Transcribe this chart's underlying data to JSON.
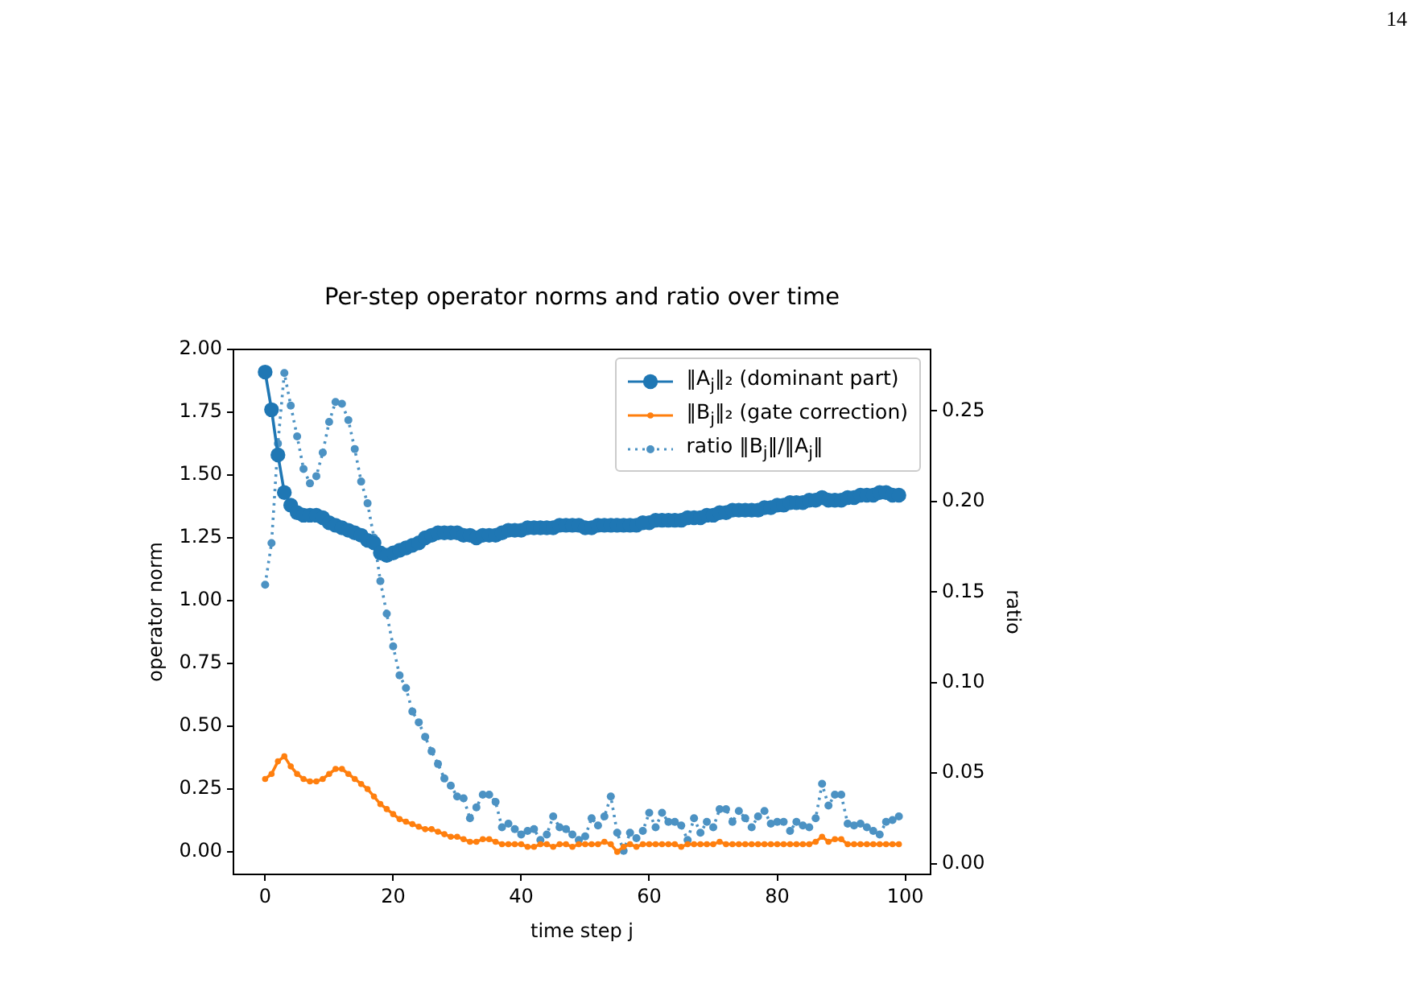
{
  "chart_data": {
    "type": "line",
    "title": "Per-step operator norms and ratio over time",
    "xlabel": "time step j",
    "ylabel": "operator norm",
    "y2label": "ratio",
    "x": [
      0,
      1,
      2,
      3,
      4,
      5,
      6,
      7,
      8,
      9,
      10,
      11,
      12,
      13,
      14,
      15,
      16,
      17,
      18,
      19,
      20,
      21,
      22,
      23,
      24,
      25,
      26,
      27,
      28,
      29,
      30,
      31,
      32,
      33,
      34,
      35,
      36,
      37,
      38,
      39,
      40,
      41,
      42,
      43,
      44,
      45,
      46,
      47,
      48,
      49,
      50,
      51,
      52,
      53,
      54,
      55,
      56,
      57,
      58,
      59,
      60,
      61,
      62,
      63,
      64,
      65,
      66,
      67,
      68,
      69,
      70,
      71,
      72,
      73,
      74,
      75,
      76,
      77,
      78,
      79,
      80,
      81,
      82,
      83,
      84,
      85,
      86,
      87,
      88,
      89,
      90,
      91,
      92,
      93,
      94,
      95,
      96,
      97,
      98,
      99
    ],
    "series": [
      {
        "name": "‖A$_{j}$‖₂ (dominant part)",
        "color": "#1f77b4",
        "line_style": "solid",
        "axis": "y",
        "values": [
          1.91,
          1.76,
          1.58,
          1.43,
          1.38,
          1.35,
          1.34,
          1.34,
          1.34,
          1.33,
          1.31,
          1.3,
          1.29,
          1.28,
          1.27,
          1.26,
          1.24,
          1.23,
          1.19,
          1.18,
          1.19,
          1.2,
          1.21,
          1.22,
          1.23,
          1.25,
          1.26,
          1.27,
          1.27,
          1.27,
          1.27,
          1.26,
          1.26,
          1.25,
          1.26,
          1.26,
          1.26,
          1.27,
          1.28,
          1.28,
          1.28,
          1.29,
          1.29,
          1.29,
          1.29,
          1.29,
          1.3,
          1.3,
          1.3,
          1.3,
          1.29,
          1.29,
          1.3,
          1.3,
          1.3,
          1.3,
          1.3,
          1.3,
          1.3,
          1.31,
          1.31,
          1.32,
          1.32,
          1.32,
          1.32,
          1.32,
          1.33,
          1.33,
          1.33,
          1.34,
          1.34,
          1.35,
          1.35,
          1.36,
          1.36,
          1.36,
          1.36,
          1.36,
          1.37,
          1.37,
          1.38,
          1.38,
          1.39,
          1.39,
          1.39,
          1.4,
          1.4,
          1.41,
          1.4,
          1.4,
          1.4,
          1.41,
          1.41,
          1.42,
          1.42,
          1.42,
          1.43,
          1.43,
          1.42,
          1.42
        ]
      },
      {
        "name": "‖B$_{j}$‖₂ (gate correction)",
        "color": "#ff7f0e",
        "line_style": "solid",
        "axis": "y",
        "values": [
          0.29,
          0.31,
          0.36,
          0.38,
          0.34,
          0.31,
          0.29,
          0.28,
          0.28,
          0.29,
          0.31,
          0.33,
          0.33,
          0.31,
          0.29,
          0.27,
          0.25,
          0.22,
          0.19,
          0.17,
          0.15,
          0.13,
          0.12,
          0.11,
          0.1,
          0.09,
          0.09,
          0.08,
          0.07,
          0.06,
          0.06,
          0.05,
          0.04,
          0.04,
          0.05,
          0.05,
          0.04,
          0.03,
          0.03,
          0.03,
          0.03,
          0.02,
          0.02,
          0.03,
          0.03,
          0.02,
          0.03,
          0.03,
          0.02,
          0.03,
          0.03,
          0.03,
          0.03,
          0.04,
          0.03,
          0.0,
          0.02,
          0.03,
          0.02,
          0.03,
          0.03,
          0.03,
          0.03,
          0.03,
          0.03,
          0.02,
          0.03,
          0.03,
          0.03,
          0.03,
          0.03,
          0.04,
          0.03,
          0.03,
          0.03,
          0.03,
          0.03,
          0.03,
          0.03,
          0.03,
          0.03,
          0.03,
          0.03,
          0.03,
          0.03,
          0.03,
          0.04,
          0.06,
          0.04,
          0.05,
          0.05,
          0.03,
          0.03,
          0.03,
          0.03,
          0.03,
          0.03,
          0.03,
          0.03,
          0.03
        ]
      },
      {
        "name": "ratio ‖B$_{j}$‖/‖A$_{j}$‖",
        "color": "#4c92c3",
        "line_style": "dotted",
        "axis": "y2",
        "values": [
          0.154,
          0.177,
          0.232,
          0.271,
          0.253,
          0.236,
          0.218,
          0.21,
          0.214,
          0.227,
          0.244,
          0.255,
          0.254,
          0.245,
          0.229,
          0.211,
          0.199,
          0.18,
          0.156,
          0.138,
          0.12,
          0.104,
          0.097,
          0.084,
          0.078,
          0.07,
          0.062,
          0.055,
          0.047,
          0.043,
          0.037,
          0.036,
          0.025,
          0.031,
          0.038,
          0.038,
          0.034,
          0.02,
          0.022,
          0.019,
          0.016,
          0.018,
          0.019,
          0.013,
          0.016,
          0.026,
          0.02,
          0.019,
          0.016,
          0.013,
          0.015,
          0.025,
          0.021,
          0.026,
          0.037,
          0.017,
          0.007,
          0.017,
          0.014,
          0.018,
          0.028,
          0.02,
          0.028,
          0.023,
          0.023,
          0.021,
          0.013,
          0.025,
          0.017,
          0.023,
          0.02,
          0.03,
          0.03,
          0.023,
          0.029,
          0.025,
          0.02,
          0.026,
          0.029,
          0.022,
          0.023,
          0.023,
          0.018,
          0.023,
          0.021,
          0.02,
          0.025,
          0.044,
          0.032,
          0.038,
          0.038,
          0.022,
          0.021,
          0.022,
          0.02,
          0.018,
          0.016,
          0.023,
          0.024,
          0.026
        ]
      }
    ],
    "xlim": [
      -4.95,
      103.95
    ],
    "xticks": [
      0,
      20,
      40,
      60,
      80,
      100
    ],
    "ylim": [
      -0.09,
      2.0
    ],
    "yticks": [
      {
        "value": 0,
        "label": "0.00"
      },
      {
        "value": 0.25,
        "label": "0.25"
      },
      {
        "value": 0.5,
        "label": "0.50"
      },
      {
        "value": 0.75,
        "label": "0.75"
      },
      {
        "value": 1,
        "label": "1.00"
      },
      {
        "value": 1.25,
        "label": "1.25"
      },
      {
        "value": 1.5,
        "label": "1.50"
      },
      {
        "value": 1.75,
        "label": "1.75"
      },
      {
        "value": 2,
        "label": "2.00"
      }
    ],
    "y2lim": [
      -0.006,
      0.284
    ],
    "y2ticks": [
      {
        "value": 0,
        "label": "0.00"
      },
      {
        "value": 0.05,
        "label": "0.05"
      },
      {
        "value": 0.1,
        "label": "0.10"
      },
      {
        "value": 0.15,
        "label": "0.15"
      },
      {
        "value": 0.2,
        "label": "0.20"
      },
      {
        "value": 0.25,
        "label": "0.25"
      }
    ],
    "grid": false,
    "legend": "top right",
    "marker": "circle",
    "annotations": [
      "14"
    ]
  }
}
